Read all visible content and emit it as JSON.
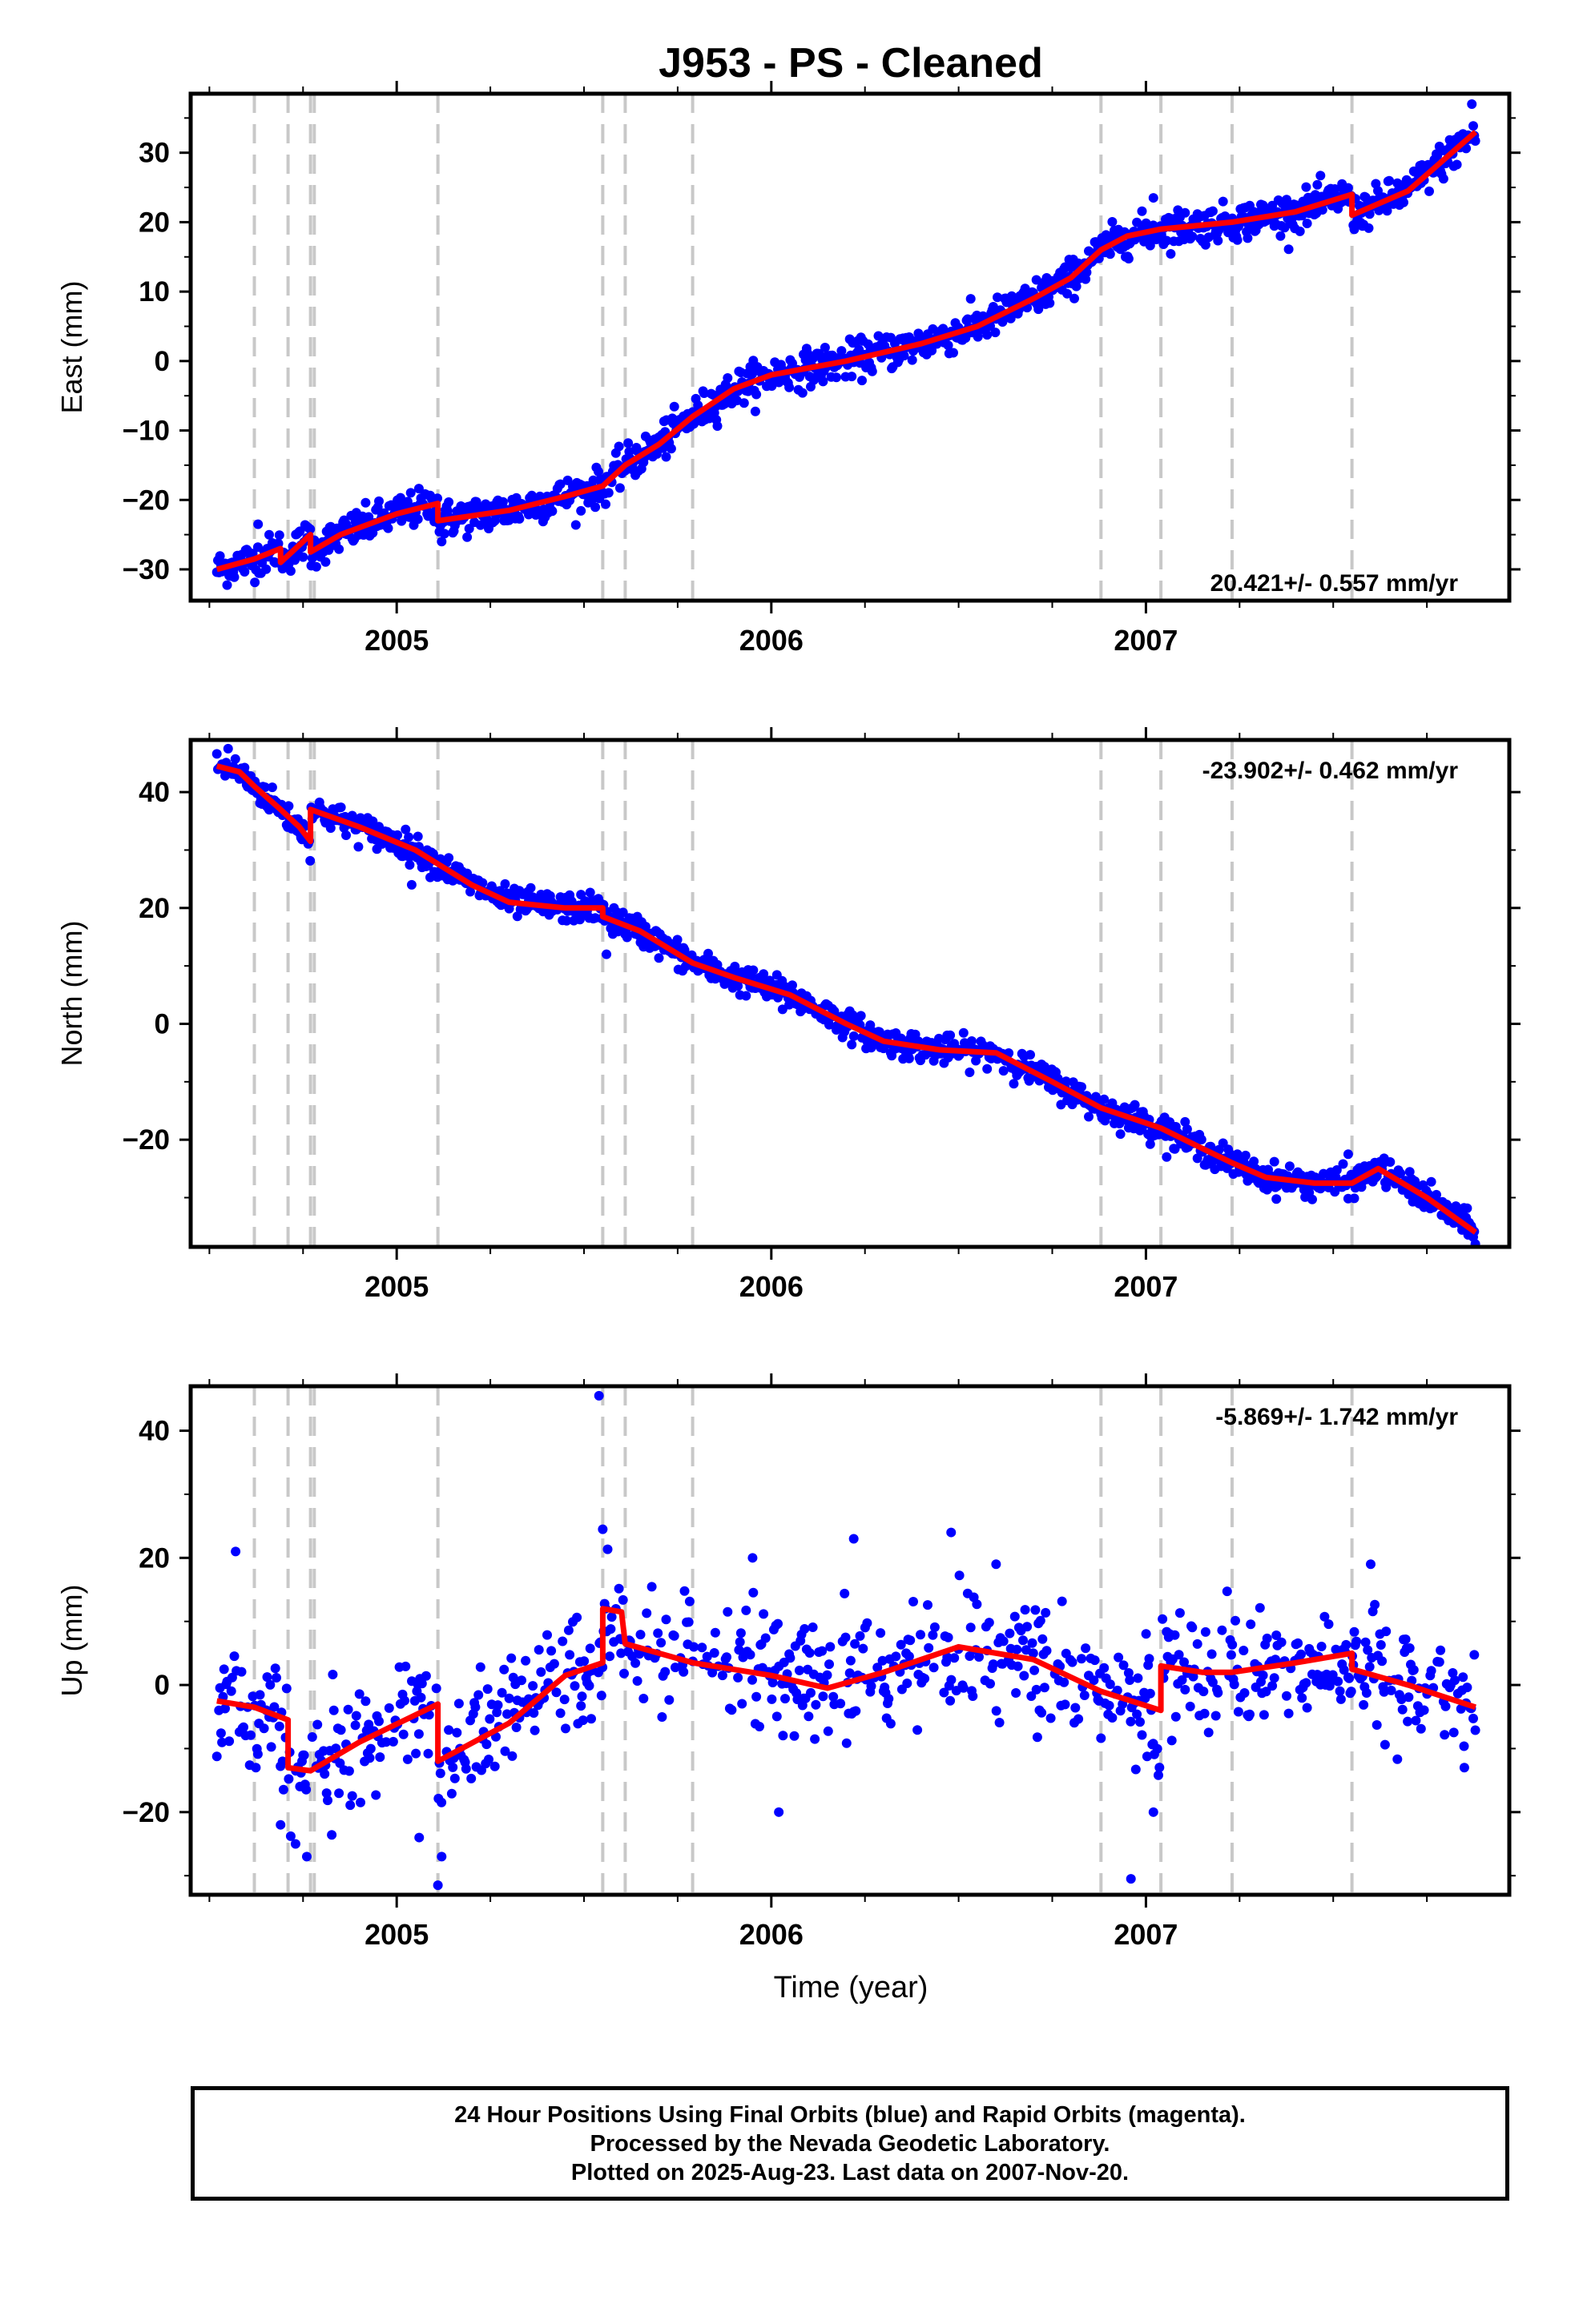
{
  "title": "J953  - PS - Cleaned",
  "x_axis_label": "Time (year)",
  "colors": {
    "points": "#0000ff",
    "model": "#ff0000",
    "breaks": "#c8c8c8",
    "frame": "#000000"
  },
  "chart_data": [
    {
      "name": "east",
      "type": "scatter",
      "ylabel": "East (mm)",
      "xlim": [
        2004.45,
        2007.97
      ],
      "ylim": [
        -34.5,
        38.5
      ],
      "yticks": [
        -30,
        -20,
        -10,
        0,
        10,
        20,
        30
      ],
      "xticks": [
        2005,
        2006,
        2007
      ],
      "rate_text": "20.421+/- 0.557 mm/yr",
      "rate_position": "bottom-right",
      "offset_epochs": [
        2004.62,
        2004.71,
        2004.77,
        2004.78,
        2005.11,
        2005.55,
        2005.61,
        2005.79,
        2006.88,
        2007.04,
        2007.23,
        2007.55
      ],
      "model_line": {
        "x": [
          2004.52,
          2004.62,
          2004.69,
          2004.69,
          2004.77,
          2004.77,
          2004.85,
          2005.0,
          2005.11,
          2005.11,
          2005.3,
          2005.45,
          2005.55,
          2005.61,
          2005.7,
          2005.79,
          2005.9,
          2006.0,
          2006.2,
          2006.4,
          2006.55,
          2006.7,
          2006.8,
          2006.88,
          2006.95,
          2007.04,
          2007.23,
          2007.4,
          2007.55,
          2007.55,
          2007.7,
          2007.88
        ],
        "y": [
          -30,
          -28.5,
          -27,
          -29,
          -25,
          -27.5,
          -25,
          -22,
          -20.5,
          -23,
          -21.5,
          -19.5,
          -18,
          -15,
          -12,
          -8,
          -4,
          -2,
          0,
          2.5,
          5,
          9,
          12,
          16,
          18,
          19,
          20,
          21.5,
          24,
          21,
          24.5,
          33
        ]
      },
      "observations": {
        "sigma": 1.3,
        "outliers": [
          {
            "x": 2004.63,
            "y": -23.5
          },
          {
            "x": 2005.12,
            "y": -26
          },
          {
            "x": 2005.72,
            "y": -8.5
          },
          {
            "x": 2007.02,
            "y": 23.5
          },
          {
            "x": 2007.87,
            "y": 37
          }
        ]
      }
    },
    {
      "name": "north",
      "type": "scatter",
      "ylabel": "North (mm)",
      "xlim": [
        2004.45,
        2007.97
      ],
      "ylim": [
        -38.5,
        49
      ],
      "yticks": [
        -20,
        0,
        20,
        40
      ],
      "xticks": [
        2005,
        2006,
        2007
      ],
      "rate_text": "-23.902+/- 0.462 mm/yr",
      "rate_position": "top-right",
      "offset_epochs": [
        2004.62,
        2004.71,
        2004.77,
        2004.78,
        2005.11,
        2005.55,
        2005.61,
        2005.79,
        2006.88,
        2007.04,
        2007.23,
        2007.55
      ],
      "model_line": {
        "x": [
          2004.52,
          2004.58,
          2004.62,
          2004.69,
          2004.74,
          2004.77,
          2004.77,
          2004.9,
          2005.05,
          2005.2,
          2005.3,
          2005.45,
          2005.55,
          2005.55,
          2005.65,
          2005.79,
          2005.9,
          2006.05,
          2006.2,
          2006.3,
          2006.45,
          2006.6,
          2006.75,
          2006.88,
          2007.04,
          2007.15,
          2007.23,
          2007.32,
          2007.45,
          2007.55,
          2007.62,
          2007.75,
          2007.88
        ],
        "y": [
          44.5,
          43.5,
          41,
          37,
          34,
          31.5,
          37,
          34,
          30,
          24,
          21,
          20,
          20,
          18.5,
          16,
          10.5,
          8,
          5,
          0,
          -3,
          -4.5,
          -5,
          -10,
          -14.5,
          -18,
          -21.5,
          -24,
          -26.5,
          -27.5,
          -27.5,
          -25,
          -30,
          -36
        ]
      },
      "observations": {
        "sigma": 1.2,
        "outliers": [
          {
            "x": 2004.55,
            "y": 47.5
          },
          {
            "x": 2005.04,
            "y": 24
          },
          {
            "x": 2005.56,
            "y": 12
          },
          {
            "x": 2005.58,
            "y": 20
          },
          {
            "x": 2006.03,
            "y": 2.5
          },
          {
            "x": 2007.54,
            "y": -22.5
          }
        ]
      }
    },
    {
      "name": "up",
      "type": "scatter",
      "ylabel": "Up (mm)",
      "xlim": [
        2004.45,
        2007.97
      ],
      "ylim": [
        -33,
        47
      ],
      "yticks": [
        -20,
        0,
        20,
        40
      ],
      "xticks": [
        2005,
        2006,
        2007
      ],
      "rate_text": "-5.869+/- 1.742 mm/yr",
      "rate_position": "top-right",
      "offset_epochs": [
        2004.62,
        2004.71,
        2004.77,
        2004.78,
        2005.11,
        2005.55,
        2005.61,
        2005.79,
        2006.88,
        2007.04,
        2007.23,
        2007.55
      ],
      "model_line": {
        "x": [
          2004.52,
          2004.62,
          2004.71,
          2004.71,
          2004.77,
          2004.9,
          2005.11,
          2005.11,
          2005.3,
          2005.45,
          2005.55,
          2005.55,
          2005.6,
          2005.61,
          2005.79,
          2006.0,
          2006.15,
          2006.3,
          2006.5,
          2006.7,
          2006.88,
          2007.04,
          2007.04,
          2007.15,
          2007.23,
          2007.4,
          2007.55,
          2007.55,
          2007.7,
          2007.88
        ],
        "y": [
          -2.5,
          -3.5,
          -5.5,
          -13,
          -13.5,
          -9,
          -3,
          -12,
          -6,
          1.5,
          3.5,
          12,
          11.5,
          6.5,
          3.5,
          1.5,
          -0.5,
          2,
          6,
          4,
          -1,
          -4,
          3,
          2,
          2,
          3.5,
          5,
          2.5,
          0,
          -3.5
        ]
      },
      "observations": {
        "sigma": 4.5,
        "outliers": [
          {
            "x": 2004.57,
            "y": 21
          },
          {
            "x": 2004.69,
            "y": -22
          },
          {
            "x": 2004.73,
            "y": -25
          },
          {
            "x": 2004.76,
            "y": -27
          },
          {
            "x": 2005.06,
            "y": -24
          },
          {
            "x": 2005.11,
            "y": -31.5
          },
          {
            "x": 2005.12,
            "y": -27
          },
          {
            "x": 2005.54,
            "y": 45.5
          },
          {
            "x": 2005.55,
            "y": 24.5
          },
          {
            "x": 2005.95,
            "y": 20
          },
          {
            "x": 2006.02,
            "y": -20
          },
          {
            "x": 2006.22,
            "y": 23
          },
          {
            "x": 2006.48,
            "y": 24
          },
          {
            "x": 2006.6,
            "y": 19
          },
          {
            "x": 2006.96,
            "y": -30.5
          },
          {
            "x": 2007.02,
            "y": -20
          },
          {
            "x": 2007.6,
            "y": 19
          },
          {
            "x": 2007.85,
            "y": -13
          }
        ]
      }
    }
  ],
  "footer": {
    "line1": "24 Hour Positions Using Final Orbits (blue) and Rapid Orbits (magenta).",
    "line2": "Processed by the Nevada Geodetic Laboratory.",
    "line3": "Plotted on 2025-Aug-23. Last data on 2007-Nov-20."
  }
}
